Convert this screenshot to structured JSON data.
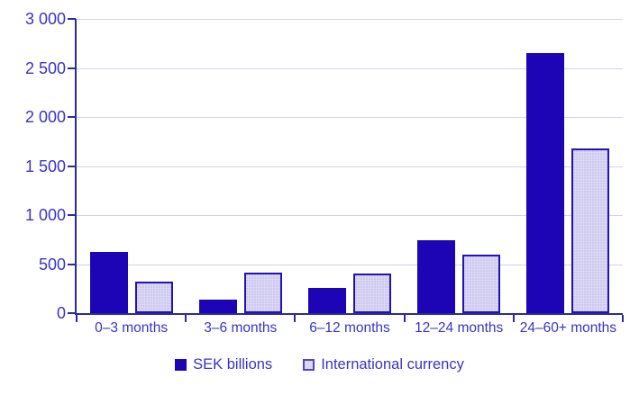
{
  "chart_data": {
    "type": "bar",
    "title": "",
    "categories": [
      "0–3 months",
      "3–6 months",
      "6–12 months",
      "12–24 months",
      "24–60+ months"
    ],
    "series": [
      {
        "name": "SEK billions",
        "color": "#1d04b4",
        "values": [
          620,
          140,
          260,
          740,
          2650
        ]
      },
      {
        "name": "International currency",
        "color": "#dcd8f4",
        "values": [
          325,
          410,
          405,
          595,
          1680
        ]
      }
    ],
    "xlabel": "",
    "ylabel": "",
    "ylim": [
      0,
      3000
    ],
    "ytick_step": 500,
    "ytick_labels": [
      "0",
      "500",
      "1 000",
      "1 500",
      "2 000",
      "2 500",
      "3 000"
    ],
    "grid": true,
    "legend_position": "bottom"
  },
  "colors": {
    "background": "#ffffff",
    "text": "#3b33c6",
    "axis": "#2e2a9d",
    "gridline": "#d5d1ef",
    "bar_dark": "#1d04b4",
    "bar_light_fill": "#dcd8f4",
    "bar_light_border": "#2412b4"
  }
}
